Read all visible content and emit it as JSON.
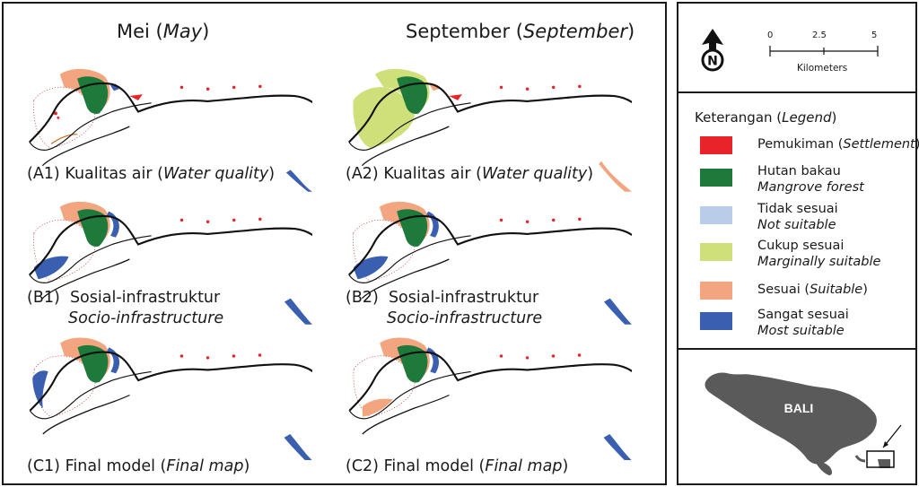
{
  "columns": {
    "may": {
      "label": "Mei",
      "label_en": "May"
    },
    "sep": {
      "label": "September",
      "label_en": "September"
    }
  },
  "maps": {
    "a1": {
      "code": "(A1)",
      "text": "Kualitas air",
      "text_en": "Water quality"
    },
    "a2": {
      "code": "(A2)",
      "text": "Kualitas air",
      "text_en": "Water quality"
    },
    "b1": {
      "code": "(B1)",
      "text": "Sosial-infrastruktur",
      "text_en": "Socio-infrastructure"
    },
    "b2": {
      "code": "(B2)",
      "text": "Sosial-infrastruktur",
      "text_en": "Socio-infrastructure"
    },
    "c1": {
      "code": "(C1)",
      "text": "Final model",
      "text_en": "Final map"
    },
    "c2": {
      "code": "(C2)",
      "text": "Final model",
      "text_en": "Final map"
    }
  },
  "scale": {
    "ticks": [
      "0",
      "2.5",
      "5"
    ],
    "unit": "Kilometers"
  },
  "north": {
    "letter": "N"
  },
  "legend": {
    "title": "Keterangan",
    "title_en": "Legend",
    "items": [
      {
        "label": "Pemukiman",
        "label_en": "Settlement",
        "color": "#e8232a"
      },
      {
        "label": "Hutan bakau",
        "label_en": "Mangrove forest",
        "color": "#1d7a3a"
      },
      {
        "label": "Tidak sesuai",
        "label_en": "Not suitable",
        "color": "#b9cde8"
      },
      {
        "label": "Cukup sesuai",
        "label_en": "Marginally suitable",
        "color": "#cfe07a"
      },
      {
        "label": "Sesuai",
        "label_en": "Suitable",
        "color": "#f2a57e"
      },
      {
        "label": "Sangat sesuai",
        "label_en": "Most suitable",
        "color": "#3a5fb0"
      }
    ]
  },
  "inset": {
    "label": "BALI"
  }
}
